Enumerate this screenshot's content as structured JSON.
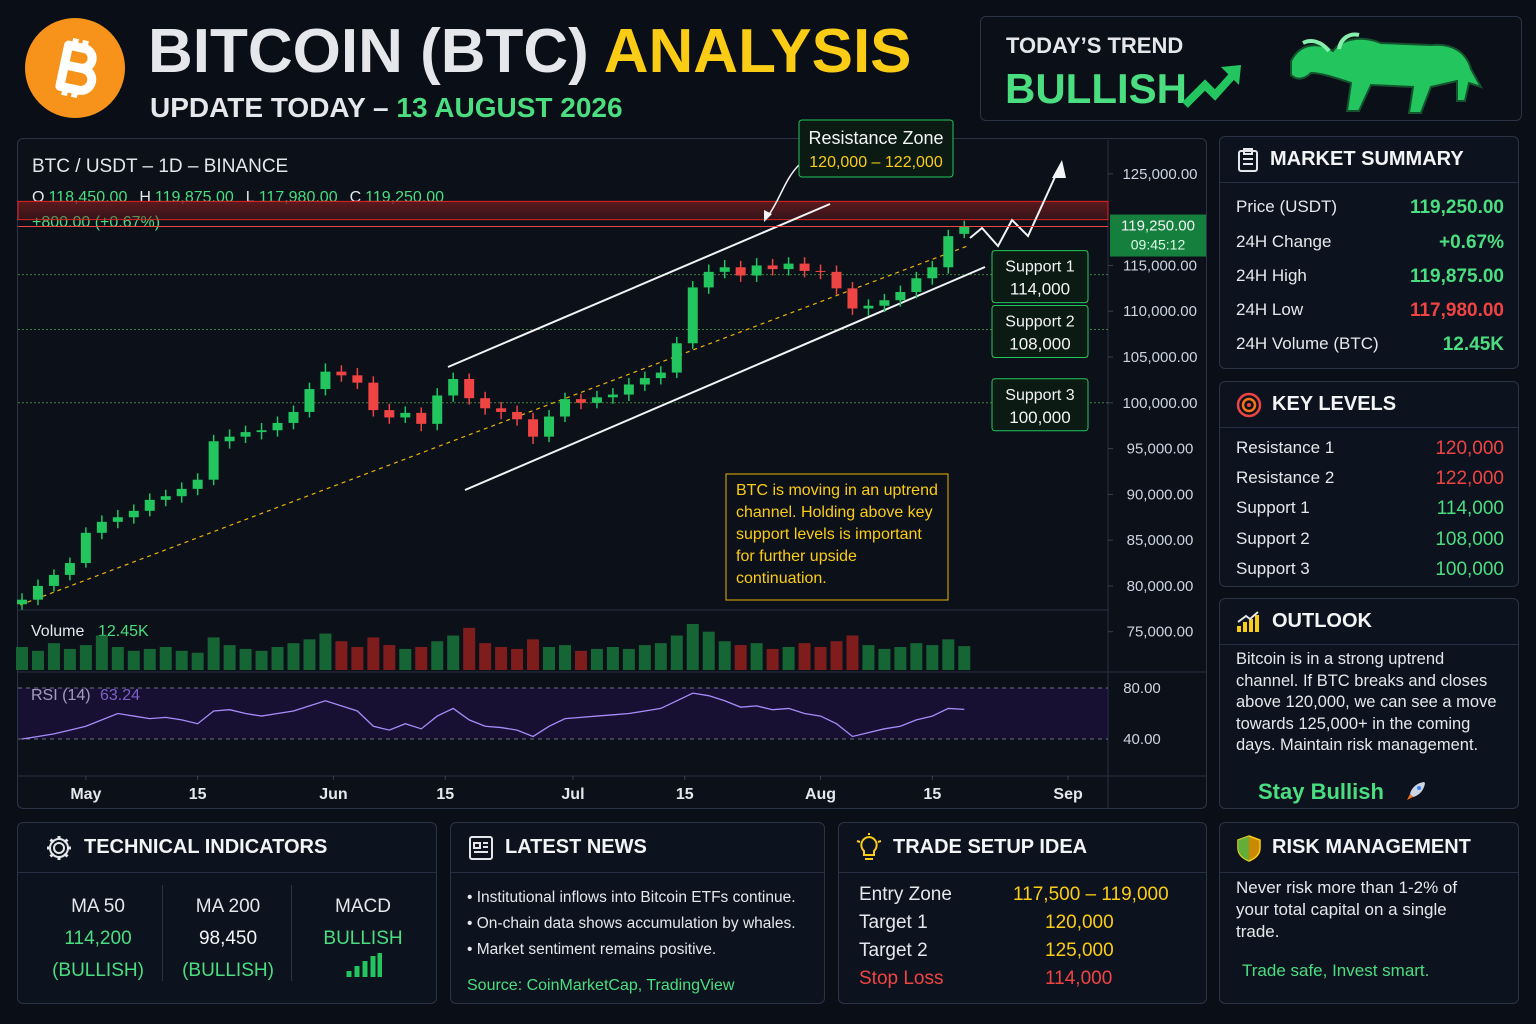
{
  "header": {
    "title": "BITCOIN (BTC)",
    "title_accent": "ANALYSIS",
    "subtitle": "UPDATE TODAY –",
    "date": "13 AUGUST 2026"
  },
  "trend": {
    "label": "TODAY’S TREND",
    "value": "BULLISH"
  },
  "chart_data": {
    "type": "candlestick",
    "title": "BTC / USDT – 1D – BINANCE",
    "ohlc": [
      {
        "label": "O",
        "value": "118,450.00"
      },
      {
        "label": "H",
        "value": "119,875.00"
      },
      {
        "label": "L",
        "value": "117,980.00"
      },
      {
        "label": "C",
        "value": "119,250.00"
      }
    ],
    "change": "+800.00 (+0.67%)",
    "x": [
      -8,
      -6,
      -4,
      -2,
      0,
      2,
      4,
      6,
      8,
      10,
      12,
      14,
      16,
      18,
      20,
      22,
      24,
      26,
      28,
      30,
      32,
      34,
      36,
      38,
      40,
      42,
      44,
      46,
      48,
      50,
      52,
      54,
      56,
      58,
      60,
      62,
      64,
      66,
      68,
      70,
      72,
      74,
      76,
      78,
      80,
      82,
      84,
      86,
      88,
      90,
      92,
      94,
      96,
      98,
      100,
      102,
      104,
      106,
      108,
      110
    ],
    "open": [
      78000,
      78500,
      80000,
      81200,
      82500,
      85800,
      87000,
      87500,
      88200,
      89400,
      89800,
      90600,
      91600,
      95800,
      96300,
      96800,
      97000,
      97800,
      99000,
      101500,
      103400,
      103000,
      102200,
      99200,
      98400,
      98900,
      97700,
      100800,
      102600,
      100500,
      99400,
      99000,
      98200,
      96300,
      98500,
      100400,
      100000,
      100600,
      100900,
      102000,
      102700,
      103300,
      106500,
      112600,
      114300,
      114800,
      113900,
      115000,
      114600,
      115200,
      114400,
      114300,
      112500,
      110300,
      110600,
      111200,
      112100,
      113600,
      114800,
      118450
    ],
    "high": [
      79200,
      80700,
      81800,
      83100,
      86400,
      87700,
      88300,
      88900,
      90100,
      90500,
      91300,
      92300,
      96500,
      97100,
      97500,
      97800,
      98500,
      99700,
      102200,
      104300,
      104100,
      103800,
      102900,
      99900,
      99600,
      99500,
      101600,
      103300,
      103200,
      101200,
      100100,
      99700,
      98900,
      99200,
      101100,
      101000,
      101300,
      101600,
      102700,
      103400,
      104000,
      107200,
      113300,
      115100,
      115600,
      115500,
      115800,
      115700,
      115900,
      115900,
      115100,
      115000,
      113200,
      111300,
      111900,
      112800,
      114300,
      115500,
      118900,
      119875
    ],
    "low": [
      77400,
      77900,
      79400,
      80600,
      82000,
      85100,
      86300,
      86800,
      87600,
      88700,
      89100,
      89900,
      91000,
      95000,
      95600,
      96000,
      96300,
      97100,
      98400,
      100800,
      102300,
      101500,
      98500,
      97700,
      97800,
      96900,
      97000,
      100100,
      99800,
      98700,
      98200,
      97500,
      95500,
      95700,
      97900,
      99300,
      99400,
      99900,
      100200,
      101300,
      102000,
      102700,
      105900,
      111900,
      113600,
      113200,
      113200,
      113900,
      113900,
      113700,
      113500,
      111800,
      109600,
      109500,
      109900,
      110500,
      111400,
      112900,
      114100,
      117980
    ],
    "close": [
      78500,
      80000,
      81200,
      82500,
      85800,
      87000,
      87500,
      88200,
      89400,
      89800,
      90600,
      91600,
      95800,
      96300,
      96800,
      97000,
      97800,
      99000,
      101500,
      103400,
      103000,
      102200,
      99200,
      98400,
      98900,
      97700,
      100800,
      102600,
      100500,
      99400,
      99000,
      98200,
      96300,
      98500,
      100400,
      100000,
      100600,
      100900,
      102000,
      102700,
      103300,
      106500,
      112600,
      114300,
      114800,
      113900,
      115000,
      114600,
      115200,
      114400,
      114300,
      112500,
      110300,
      110600,
      111200,
      112100,
      113600,
      114800,
      118200,
      119250
    ],
    "up_color": "#22c55e",
    "down_color": "#ef4444",
    "xlim": [
      -8.5,
      128
    ],
    "xticks": [
      {
        "value": 0,
        "label": "May"
      },
      {
        "value": 14,
        "label": "15"
      },
      {
        "value": 31,
        "label": "Jun"
      },
      {
        "value": 45,
        "label": "15"
      },
      {
        "value": 61,
        "label": "Jul"
      },
      {
        "value": 75,
        "label": "15"
      },
      {
        "value": 92,
        "label": "Aug"
      },
      {
        "value": 106,
        "label": "15"
      },
      {
        "value": 123,
        "label": "Sep"
      }
    ],
    "ylim": [
      70600,
      128700
    ],
    "yticks": [
      {
        "value": 75000,
        "label": "75,000.00"
      },
      {
        "value": 80000,
        "label": "80,000.00"
      },
      {
        "value": 85000,
        "label": "85,000.00"
      },
      {
        "value": 90000,
        "label": "90,000.00"
      },
      {
        "value": 95000,
        "label": "95,000.00"
      },
      {
        "value": 100000,
        "label": "100,000.00"
      },
      {
        "value": 105000,
        "label": "105,000.00"
      },
      {
        "value": 110000,
        "label": "110,000.00"
      },
      {
        "value": 115000,
        "label": "115,000.00"
      },
      {
        "value": 125000,
        "label": "125,000.00"
      }
    ],
    "last_price": {
      "value": 119250,
      "label": "119,250.00",
      "timer": "09:45:12"
    },
    "resistance_zone": {
      "title": "Resistance Zone",
      "label": "120,000 – 122,000",
      "from": 120000,
      "to": 122000
    },
    "supports": [
      {
        "name": "Support 1",
        "value": 114000,
        "label": "114,000"
      },
      {
        "name": "Support 2",
        "value": 108000,
        "label": "108,000"
      },
      {
        "name": "Support 3",
        "value": 100000,
        "label": "100,000"
      }
    ],
    "note": "BTC is moving in an uptrend channel. Holding above key support levels is important for further upside continuation.",
    "volume": {
      "title": "Volume",
      "values": [
        12,
        10,
        14,
        11,
        13,
        18,
        12,
        10,
        11,
        12,
        10,
        9,
        17,
        13,
        11,
        10,
        12,
        14,
        16,
        19,
        15,
        12,
        17,
        13,
        11,
        12,
        15,
        18,
        22,
        14,
        12,
        11,
        16,
        12,
        13,
        10,
        11,
        12,
        11,
        13,
        14,
        18,
        24,
        20,
        15,
        13,
        14,
        11,
        12,
        14,
        12,
        15,
        18,
        13,
        11,
        12,
        14,
        13,
        16,
        12.45
      ],
      "value_label": "12.45K"
    },
    "rsi": {
      "title": "RSI (14)",
      "color": "#a78bfa",
      "values": [
        40,
        42,
        44,
        47,
        50,
        55,
        60,
        58,
        56,
        57,
        55,
        52,
        62,
        63,
        60,
        58,
        60,
        62,
        66,
        70,
        66,
        62,
        50,
        47,
        52,
        48,
        58,
        64,
        55,
        50,
        49,
        47,
        42,
        50,
        56,
        57,
        58,
        59,
        60,
        62,
        64,
        70,
        76,
        74,
        70,
        65,
        66,
        63,
        64,
        60,
        58,
        52,
        42,
        45,
        48,
        50,
        55,
        58,
        64,
        63.24
      ],
      "value_label": "63.24",
      "ylim": [
        15.7,
        86.3
      ],
      "yticks": [
        {
          "value": 80,
          "label": "80.00"
        },
        {
          "value": 40,
          "label": "40.00"
        }
      ]
    }
  },
  "market_summary": {
    "title": "MARKET SUMMARY",
    "rows": [
      [
        "Price (USDT)",
        "119,250.00"
      ],
      [
        "24H Change",
        "+0.67%"
      ],
      [
        "24H High",
        "119,875.00"
      ],
      [
        "24H Low",
        "117,980.00"
      ],
      [
        "24H Volume (BTC)",
        "12.45K"
      ]
    ]
  },
  "key_levels": {
    "title": "KEY LEVELS",
    "rows": [
      [
        "Resistance 1",
        "120,000"
      ],
      [
        "Resistance 2",
        "122,000"
      ],
      [
        "Support 1",
        "114,000"
      ],
      [
        "Support 2",
        "108,000"
      ],
      [
        "Support 3",
        "100,000"
      ]
    ]
  },
  "outlook": {
    "title": "OUTLOOK",
    "text": "Bitcoin is in a strong uptrend channel. If BTC breaks and closes above 120,000, we can see a move towards 125,000+ in the coming days. Maintain risk management.",
    "tagline": "Stay Bullish"
  },
  "technical": {
    "title": "TECHNICAL INDICATORS",
    "items": [
      {
        "name": "MA 50",
        "value": "114,200",
        "status": "(BULLISH)"
      },
      {
        "name": "MA 200",
        "value": "98,450",
        "status": "(BULLISH)"
      },
      {
        "name": "MACD",
        "value": "BULLISH"
      }
    ]
  },
  "news": {
    "title": "LATEST NEWS",
    "items": [
      "Institutional inflows into Bitcoin ETFs continue.",
      "On-chain data shows accumulation by whales.",
      "Market sentiment remains positive."
    ],
    "source": "Source: CoinMarketCap, TradingView"
  },
  "trade": {
    "title": "TRADE SETUP IDEA",
    "rows": [
      [
        "Entry Zone",
        "117,500 – 119,000"
      ],
      [
        "Target 1",
        "120,000"
      ],
      [
        "Target 2",
        "125,000"
      ],
      [
        "Stop Loss",
        "114,000"
      ]
    ]
  },
  "risk": {
    "title": "RISK MANAGEMENT",
    "text": "Never risk more than 1-2% of your total capital on a single trade.",
    "tagline": "Trade safe, Invest smart."
  }
}
